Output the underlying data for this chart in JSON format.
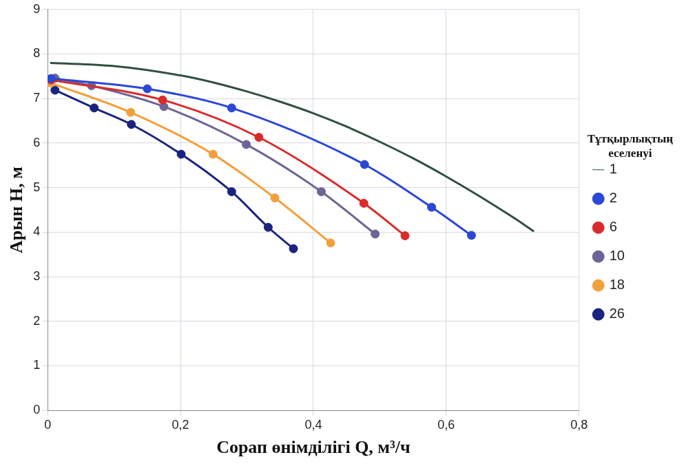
{
  "chart_data": {
    "type": "line",
    "xlabel": "Сорап өнімділігі Q, м³/ч",
    "ylabel": "Арын H, м",
    "legend_title": "Тұтқырлықтың еселенуі",
    "legend": "right",
    "grid": true,
    "marker": "circle",
    "line_style": "solid",
    "xlim": [
      0,
      0.8
    ],
    "xticks": [
      0,
      {
        "value": 0.2,
        "label": "0,2"
      },
      {
        "value": 0.4,
        "label": "0,4"
      },
      {
        "value": 0.6,
        "label": "0,6"
      },
      {
        "value": 0.8,
        "label": "0,8"
      }
    ],
    "ylim": [
      0,
      9
    ],
    "yticks": [
      0,
      1,
      2,
      3,
      4,
      5,
      6,
      7,
      8,
      9
    ],
    "series": [
      {
        "name": "1",
        "color": "#2f4f3f",
        "marker": "none",
        "x": [
          0.005,
          0.1,
          0.2,
          0.25,
          0.3,
          0.35,
          0.4,
          0.45,
          0.5,
          0.55,
          0.6,
          0.65,
          0.7,
          0.731
        ],
        "values": [
          7.8,
          7.73,
          7.52,
          7.36,
          7.16,
          6.93,
          6.67,
          6.37,
          6.03,
          5.66,
          5.25,
          4.81,
          4.34,
          4.03
        ]
      },
      {
        "name": "2",
        "color": "#2a47d6",
        "x": [
          0.005,
          0.15,
          0.277,
          0.477,
          0.578,
          0.638
        ],
        "values": [
          7.45,
          7.22,
          6.79,
          5.52,
          4.56,
          3.93
        ]
      },
      {
        "name": "6",
        "color": "#d92b2b",
        "x": [
          0.005,
          0.173,
          0.318,
          0.476,
          0.538
        ],
        "values": [
          7.42,
          6.97,
          6.13,
          4.65,
          3.92
        ]
      },
      {
        "name": "10",
        "color": "#6e6496",
        "x": [
          0.011,
          0.066,
          0.175,
          0.299,
          0.412,
          0.493
        ],
        "values": [
          7.46,
          7.29,
          6.82,
          5.97,
          4.91,
          3.96
        ]
      },
      {
        "name": "18",
        "color": "#f3a03c",
        "x": [
          0.005,
          0.125,
          0.249,
          0.342,
          0.426
        ],
        "values": [
          7.35,
          6.69,
          5.75,
          4.77,
          3.76
        ]
      },
      {
        "name": "26",
        "color": "#1a237e",
        "x": [
          0.011,
          0.07,
          0.126,
          0.201,
          0.277,
          0.332,
          0.37
        ],
        "values": [
          7.19,
          6.79,
          6.42,
          5.75,
          4.91,
          4.11,
          3.63
        ]
      }
    ]
  }
}
